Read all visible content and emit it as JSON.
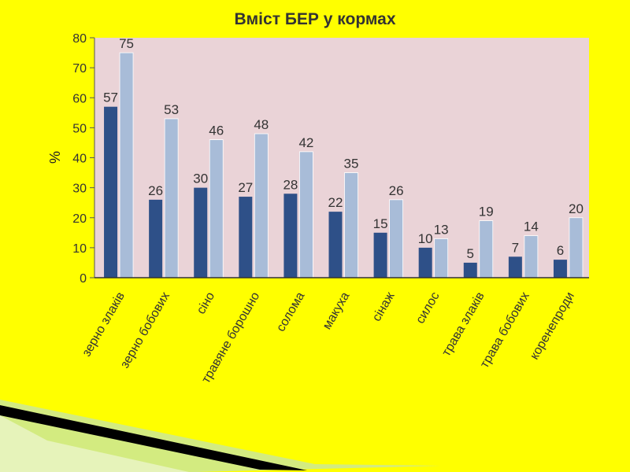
{
  "colors": {
    "background": "#ffff00",
    "plot_area": "#ead3d7",
    "series_dark": "#2e5088",
    "series_light": "#a8bcd8",
    "decor_dark": "#000000",
    "decor_stripe": "#c8e6a0"
  },
  "chart_data": {
    "type": "bar",
    "title": "Вміст БЕР у кормах",
    "ylabel": "%",
    "xlabel": "",
    "ylim": [
      0,
      80
    ],
    "yticks": [
      0,
      10,
      20,
      30,
      40,
      50,
      60,
      70,
      80
    ],
    "grid": false,
    "legend": "none",
    "categories": [
      "зерно злаків",
      "зерно бобових",
      "сіно",
      "травяне борошно",
      "солома",
      "макуха",
      "сінаж",
      "силос",
      "трава злаків",
      "трава бобових",
      "коренепроди"
    ],
    "series": [
      {
        "values": [
          57,
          26,
          30,
          27,
          28,
          22,
          15,
          10,
          5,
          7,
          6
        ]
      },
      {
        "values": [
          75,
          53,
          46,
          48,
          42,
          35,
          26,
          13,
          19,
          14,
          20
        ]
      }
    ]
  }
}
